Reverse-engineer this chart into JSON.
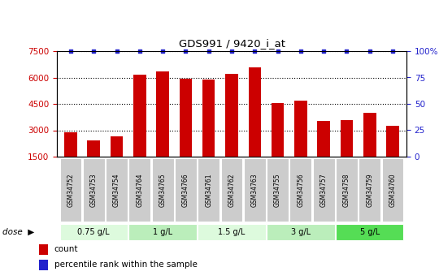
{
  "title": "GDS991 / 9420_i_at",
  "samples": [
    "GSM34752",
    "GSM34753",
    "GSM34754",
    "GSM34764",
    "GSM34765",
    "GSM34766",
    "GSM34761",
    "GSM34762",
    "GSM34763",
    "GSM34755",
    "GSM34756",
    "GSM34757",
    "GSM34758",
    "GSM34759",
    "GSM34760"
  ],
  "counts": [
    2900,
    2400,
    2650,
    6150,
    6350,
    5950,
    5900,
    6200,
    6600,
    4550,
    4700,
    3550,
    3600,
    4000,
    3250
  ],
  "bar_color": "#cc0000",
  "dot_color": "#2222cc",
  "ylim_left": [
    1500,
    7500
  ],
  "ylim_right": [
    0,
    100
  ],
  "yticks_left": [
    1500,
    3000,
    4500,
    6000,
    7500
  ],
  "yticks_right": [
    0,
    25,
    50,
    75,
    100
  ],
  "dose_groups": [
    {
      "label": "0.75 g/L",
      "samples": [
        "GSM34752",
        "GSM34753",
        "GSM34754"
      ],
      "color": "#ddfadd"
    },
    {
      "label": "1 g/L",
      "samples": [
        "GSM34764",
        "GSM34765",
        "GSM34766"
      ],
      "color": "#bbeebb"
    },
    {
      "label": "1.5 g/L",
      "samples": [
        "GSM34761",
        "GSM34762",
        "GSM34763"
      ],
      "color": "#ddfadd"
    },
    {
      "label": "3 g/L",
      "samples": [
        "GSM34755",
        "GSM34756",
        "GSM34757"
      ],
      "color": "#bbeebb"
    },
    {
      "label": "5 g/L",
      "samples": [
        "GSM34758",
        "GSM34759",
        "GSM34760"
      ],
      "color": "#55dd55"
    }
  ],
  "dose_label": "dose",
  "legend_count_label": "count",
  "legend_pct_label": "percentile rank within the sample",
  "bg_color": "#ffffff",
  "sample_box_color": "#cccccc",
  "left_tick_color": "#cc0000",
  "right_tick_color": "#2222cc"
}
